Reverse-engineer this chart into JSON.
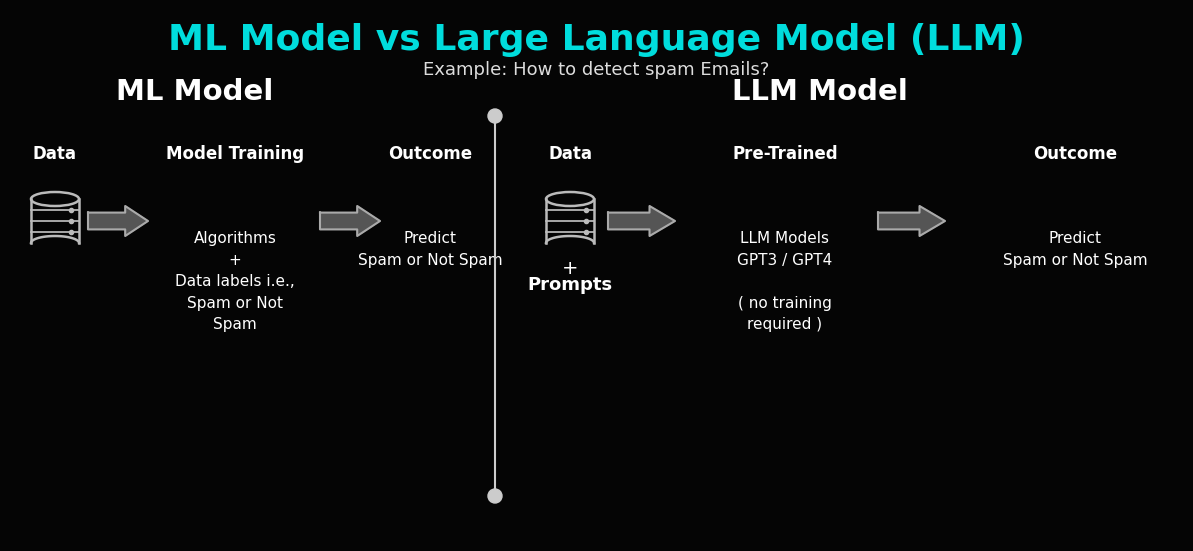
{
  "title": "ML Model vs Large Language Model (LLM)",
  "title_color": "#00DDDD",
  "subtitle": "Example: How to detect spam Emails?",
  "subtitle_color": "#DDDDDD",
  "bg_color": "#050505",
  "text_color": "#FFFFFF",
  "divider_color": "#CCCCCC",
  "left_section_title": "ML Model",
  "right_section_title": "LLM Model",
  "ml_col1_label": "Data",
  "ml_col2_label": "Model Training",
  "ml_col3_label": "Outcome",
  "ml_col2_body": "Algorithms\n+\nData labels i.e.,\nSpam or Not\nSpam",
  "ml_col3_body": "Predict\nSpam or Not Spam",
  "llm_col1_label": "Data",
  "llm_col2_label": "Pre-Trained",
  "llm_col3_label": "Outcome",
  "llm_col1_extra": "+\nPrompts",
  "llm_col2_body": "LLM Models\nGPT3 / GPT4\n\n( no training\nrequired )",
  "llm_col3_body": "Predict\nSpam or Not Spam",
  "figw": 11.93,
  "figh": 5.51,
  "dpi": 100
}
